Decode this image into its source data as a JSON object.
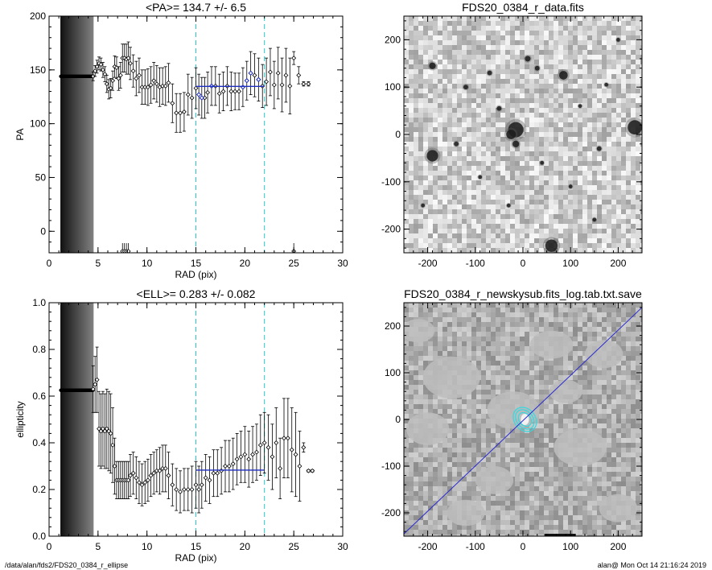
{
  "footer": {
    "path": "/data/alan/fds2/FDS20_0384_r_ellipse",
    "stamp": "alan@  Mon Oct 14 21:16:24 2019"
  },
  "colors": {
    "axis": "#000000",
    "fit_line": "#1f2fbf",
    "limit_line": "#28c8c8",
    "model_line": "#2a2ad0",
    "contour": "#38d8e0",
    "marker": "#000000",
    "highlight_marker": "#1f2fbf"
  },
  "chart_data": [
    {
      "id": "pa",
      "type": "scatter",
      "title": "<PA>= 134.7 +/-   6.5",
      "xlabel": "RAD (pix)",
      "ylabel": "PA",
      "xlim": [
        0,
        30
      ],
      "ylim": [
        -20,
        200
      ],
      "xticks": [
        0,
        5,
        10,
        15,
        20,
        25,
        30
      ],
      "yticks": [
        0,
        50,
        100,
        150,
        200
      ],
      "mean": 134.7,
      "err": 6.5,
      "fit_range": [
        15,
        22
      ],
      "inner_cut": 1.2,
      "sat_band": [
        1.2,
        4.5
      ],
      "wrapped_points": [
        7.5,
        7.7,
        7.9,
        8.1,
        25
      ],
      "points": [
        [
          4.5,
          144,
          4
        ],
        [
          4.7,
          149,
          5
        ],
        [
          4.9,
          153,
          6
        ],
        [
          5.1,
          156,
          6
        ],
        [
          5.3,
          155,
          6
        ],
        [
          5.5,
          150,
          7
        ],
        [
          5.7,
          146,
          7
        ],
        [
          5.9,
          137,
          8
        ],
        [
          6.1,
          132,
          9
        ],
        [
          6.3,
          133,
          9
        ],
        [
          6.5,
          140,
          9
        ],
        [
          6.7,
          153,
          10
        ],
        [
          6.9,
          152,
          10
        ],
        [
          7.1,
          142,
          11
        ],
        [
          7.3,
          145,
          12
        ],
        [
          7.5,
          161,
          13
        ],
        [
          7.7,
          161,
          13
        ],
        [
          7.9,
          160,
          14
        ],
        [
          8.1,
          161,
          15
        ],
        [
          8.3,
          156,
          15
        ],
        [
          8.6,
          149,
          15
        ],
        [
          8.9,
          142,
          16
        ],
        [
          9.2,
          145,
          16
        ],
        [
          9.5,
          134,
          16
        ],
        [
          9.8,
          134,
          16
        ],
        [
          10.1,
          134,
          17
        ],
        [
          10.4,
          136,
          17
        ],
        [
          10.7,
          140,
          17
        ],
        [
          11,
          137,
          17
        ],
        [
          11.3,
          134,
          18
        ],
        [
          11.6,
          135,
          17
        ],
        [
          11.9,
          135,
          18
        ],
        [
          12.2,
          138,
          18
        ],
        [
          12.6,
          119,
          18
        ],
        [
          13,
          110,
          18
        ],
        [
          13.4,
          110,
          18
        ],
        [
          13.8,
          111,
          18
        ],
        [
          14.2,
          127,
          19
        ],
        [
          14.6,
          124,
          19
        ],
        [
          15.0,
          133,
          19
        ],
        [
          15.3,
          127,
          19
        ],
        [
          15.6,
          124,
          19
        ],
        [
          15.9,
          124,
          19
        ],
        [
          16.2,
          129,
          19
        ],
        [
          16.6,
          135,
          18
        ],
        [
          17,
          135,
          18
        ],
        [
          17.4,
          128,
          18
        ],
        [
          17.8,
          130,
          18
        ],
        [
          18.2,
          135,
          18
        ],
        [
          18.6,
          130,
          18
        ],
        [
          19,
          130,
          17
        ],
        [
          19.4,
          130,
          17
        ],
        [
          19.8,
          134,
          18
        ],
        [
          20.2,
          140,
          18
        ],
        [
          20.6,
          147,
          20
        ],
        [
          21.0,
          145,
          20
        ],
        [
          21.4,
          141,
          20
        ],
        [
          21.8,
          135,
          20
        ],
        [
          22.2,
          139,
          22
        ],
        [
          22.6,
          148,
          22
        ],
        [
          23.0,
          136,
          22
        ],
        [
          23.4,
          147,
          24
        ],
        [
          23.8,
          136,
          25
        ],
        [
          24.2,
          145,
          25
        ],
        [
          24.6,
          135,
          26
        ],
        [
          25,
          161,
          6
        ],
        [
          25.5,
          145,
          8
        ],
        [
          26,
          137,
          2
        ],
        [
          26.5,
          137,
          2
        ]
      ],
      "highlight_points": [
        [
          15.3,
          127
        ],
        [
          15.6,
          124
        ],
        [
          16.6,
          135
        ],
        [
          19.8,
          134
        ],
        [
          20.2,
          140
        ],
        [
          20.6,
          147
        ],
        [
          21.4,
          141
        ]
      ]
    },
    {
      "id": "ell",
      "type": "scatter",
      "title": "<ELL>= 0.283 +/-  0.082",
      "xlabel": "RAD (pix)",
      "ylabel": "ellipticity",
      "xlim": [
        0,
        30
      ],
      "ylim": [
        0,
        1
      ],
      "xticks": [
        0,
        5,
        10,
        15,
        20,
        25,
        30
      ],
      "yticks": [
        0.0,
        0.2,
        0.4,
        0.6,
        0.8,
        1.0
      ],
      "mean": 0.283,
      "err": 0.082,
      "fit_range": [
        15,
        22
      ],
      "inner_cut": 1.2,
      "sat_band": [
        1.2,
        4.5
      ],
      "points": [
        [
          4.5,
          0.63,
          0.1
        ],
        [
          4.7,
          0.65,
          0.12
        ],
        [
          4.9,
          0.67,
          0.14
        ],
        [
          5.1,
          0.46,
          0.16
        ],
        [
          5.3,
          0.45,
          0.16
        ],
        [
          5.5,
          0.46,
          0.16
        ],
        [
          5.7,
          0.45,
          0.16
        ],
        [
          5.9,
          0.46,
          0.17
        ],
        [
          6.1,
          0.45,
          0.17
        ],
        [
          6.3,
          0.44,
          0.17
        ],
        [
          6.5,
          0.39,
          0.16
        ],
        [
          6.7,
          0.3,
          0.12
        ],
        [
          6.9,
          0.24,
          0.08
        ],
        [
          7.1,
          0.24,
          0.08
        ],
        [
          7.3,
          0.24,
          0.08
        ],
        [
          7.5,
          0.24,
          0.08
        ],
        [
          7.7,
          0.24,
          0.08
        ],
        [
          7.9,
          0.24,
          0.08
        ],
        [
          8.1,
          0.24,
          0.08
        ],
        [
          8.3,
          0.26,
          0.09
        ],
        [
          8.6,
          0.27,
          0.09
        ],
        [
          8.9,
          0.25,
          0.09
        ],
        [
          9.2,
          0.23,
          0.09
        ],
        [
          9.5,
          0.22,
          0.09
        ],
        [
          9.8,
          0.23,
          0.09
        ],
        [
          10.1,
          0.24,
          0.09
        ],
        [
          10.4,
          0.26,
          0.09
        ],
        [
          10.7,
          0.27,
          0.09
        ],
        [
          11,
          0.28,
          0.09
        ],
        [
          11.3,
          0.28,
          0.1
        ],
        [
          11.6,
          0.29,
          0.1
        ],
        [
          11.9,
          0.29,
          0.1
        ],
        [
          12.2,
          0.26,
          0.1
        ],
        [
          12.6,
          0.22,
          0.09
        ],
        [
          13,
          0.2,
          0.09
        ],
        [
          13.4,
          0.19,
          0.09
        ],
        [
          13.8,
          0.2,
          0.09
        ],
        [
          14.2,
          0.2,
          0.09
        ],
        [
          14.6,
          0.2,
          0.1
        ],
        [
          15.0,
          0.22,
          0.1
        ],
        [
          15.3,
          0.2,
          0.1
        ],
        [
          15.6,
          0.22,
          0.1
        ],
        [
          16,
          0.25,
          0.1
        ],
        [
          16.4,
          0.24,
          0.1
        ],
        [
          16.8,
          0.27,
          0.1
        ],
        [
          17.2,
          0.27,
          0.1
        ],
        [
          17.6,
          0.28,
          0.1
        ],
        [
          18,
          0.3,
          0.11
        ],
        [
          18.4,
          0.3,
          0.11
        ],
        [
          18.8,
          0.31,
          0.11
        ],
        [
          19.2,
          0.33,
          0.11
        ],
        [
          19.6,
          0.34,
          0.11
        ],
        [
          20,
          0.35,
          0.12
        ],
        [
          20.4,
          0.33,
          0.12
        ],
        [
          20.8,
          0.35,
          0.12
        ],
        [
          21.2,
          0.36,
          0.12
        ],
        [
          21.6,
          0.39,
          0.13
        ],
        [
          22,
          0.4,
          0.13
        ],
        [
          22.4,
          0.38,
          0.14
        ],
        [
          22.8,
          0.34,
          0.14
        ],
        [
          23.2,
          0.4,
          0.15
        ],
        [
          23.6,
          0.29,
          0.13
        ],
        [
          24,
          0.42,
          0.17
        ],
        [
          24.4,
          0.42,
          0.17
        ],
        [
          24.8,
          0.37,
          0.18
        ],
        [
          25.2,
          0.35,
          0.18
        ],
        [
          25.6,
          0.3,
          0.15
        ],
        [
          26,
          0.38,
          0.02
        ],
        [
          26.5,
          0.28,
          0.005
        ],
        [
          26.9,
          0.28,
          0.005
        ]
      ]
    },
    {
      "id": "data",
      "type": "heatmap",
      "title": "FDS20_0384_r_data.fits",
      "xlim": [
        -250,
        250
      ],
      "ylim": [
        -250,
        250
      ],
      "xticks": [
        -200,
        -100,
        0,
        100,
        200
      ],
      "yticks": [
        -200,
        -100,
        0,
        100,
        200
      ],
      "sources": [
        [
          -15,
          10,
          16
        ],
        [
          -25,
          0,
          10
        ],
        [
          -15,
          -20,
          7
        ],
        [
          -190,
          -45,
          12
        ],
        [
          85,
          125,
          9
        ],
        [
          235,
          15,
          15
        ],
        [
          60,
          -235,
          13
        ],
        [
          -190,
          145,
          7
        ],
        [
          10,
          160,
          6
        ],
        [
          -70,
          130,
          5
        ],
        [
          -120,
          100,
          5
        ],
        [
          30,
          140,
          5
        ],
        [
          -50,
          55,
          5
        ],
        [
          160,
          -30,
          5
        ],
        [
          175,
          105,
          4
        ],
        [
          -90,
          -90,
          4
        ],
        [
          100,
          -110,
          4
        ],
        [
          -140,
          -20,
          5
        ],
        [
          200,
          200,
          4
        ],
        [
          120,
          60,
          4
        ],
        [
          -30,
          -150,
          4
        ],
        [
          40,
          -60,
          4
        ],
        [
          -210,
          -150,
          4
        ],
        [
          150,
          -180,
          4
        ]
      ]
    },
    {
      "id": "model",
      "type": "heatmap",
      "title": "FDS20_0384_r_newskysub.fits_log.tab.txt.save",
      "xlim": [
        -250,
        250
      ],
      "ylim": [
        -250,
        250
      ],
      "xticks": [
        -200,
        -100,
        0,
        100,
        200
      ],
      "yticks": [
        -200,
        -100,
        0,
        100,
        200
      ],
      "line": [
        [
          -250,
          -245
        ],
        [
          250,
          240
        ]
      ],
      "contours": [
        [
          4,
          0,
          22,
          28,
          40
        ],
        [
          4,
          0,
          17,
          23,
          40
        ],
        [
          4,
          0,
          12,
          16,
          40
        ]
      ],
      "masks": [
        [
          -150,
          90,
          60,
          45
        ],
        [
          120,
          -60,
          55,
          40
        ],
        [
          -60,
          -130,
          40,
          30
        ],
        [
          170,
          140,
          40,
          30
        ],
        [
          -200,
          -20,
          45,
          35
        ],
        [
          60,
          160,
          45,
          30
        ],
        [
          -20,
          20,
          55,
          40
        ],
        [
          200,
          -190,
          40,
          30
        ],
        [
          -120,
          -200,
          40,
          28
        ],
        [
          90,
          60,
          35,
          25
        ],
        [
          -220,
          190,
          35,
          25
        ]
      ]
    }
  ]
}
